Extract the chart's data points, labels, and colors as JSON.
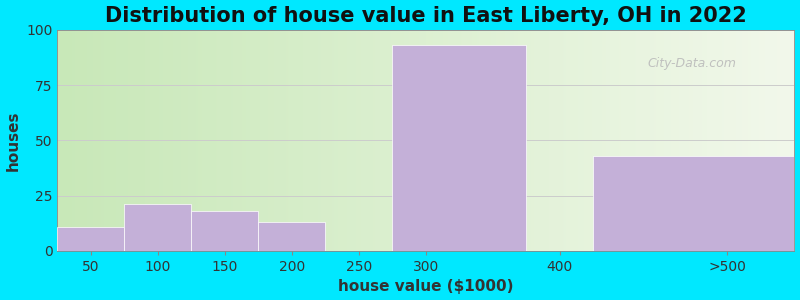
{
  "title": "Distribution of house value in East Liberty, OH in 2022",
  "xlabel": "house value ($1000)",
  "ylabel": "houses",
  "categories": [
    "50",
    "100",
    "150",
    "200",
    "250",
    "300",
    "400",
    ">500"
  ],
  "bin_edges": [
    0,
    1,
    2,
    3,
    4,
    5,
    6,
    7,
    8
  ],
  "tick_positions": [
    0,
    1,
    2,
    3,
    4,
    5,
    7,
    8
  ],
  "values": [
    11,
    21,
    18,
    13,
    0,
    93,
    0,
    43
  ],
  "bar_color": "#c4b0d8",
  "bar_edgecolor": "#ffffff",
  "ylim": [
    0,
    100
  ],
  "yticks": [
    0,
    25,
    50,
    75,
    100
  ],
  "background_outer": "#00e8ff",
  "background_left": "#c8e8b8",
  "background_right": "#f0f5e8",
  "title_fontsize": 15,
  "axis_fontsize": 11,
  "tick_fontsize": 10,
  "watermark_text": "City-Data.com"
}
